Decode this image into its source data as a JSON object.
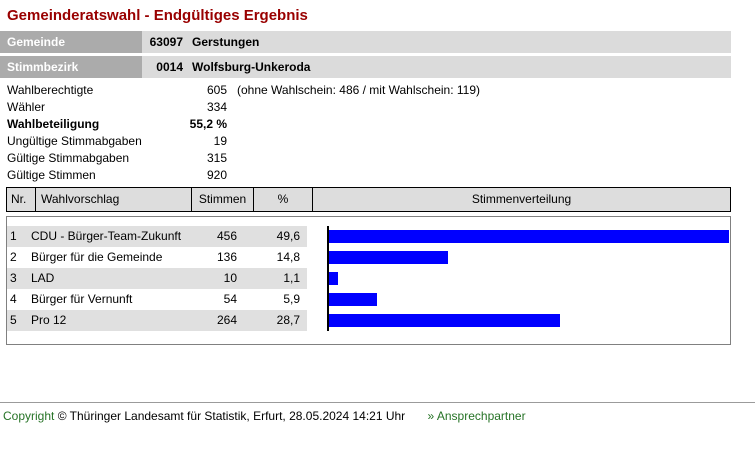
{
  "page": {
    "title": "Gemeinderatswahl - Endgültiges Ergebnis"
  },
  "region": {
    "rows": [
      {
        "label": "Gemeinde",
        "code": "63097",
        "name": "Gerstungen"
      },
      {
        "label": "Stimmbezirk",
        "code": "0014",
        "name": "Wolfsburg-Unkeroda"
      }
    ]
  },
  "summary": {
    "rows": [
      {
        "label": "Wahlberechtigte",
        "value": "605",
        "note": "(ohne Wahlschein: 486 / mit Wahlschein: 119)"
      },
      {
        "label": "Wähler",
        "value": "334"
      },
      {
        "label": "Wahlbeteiligung",
        "value": "55,2 %"
      },
      {
        "label": "Ungültige Stimmabgaben",
        "value": "19"
      },
      {
        "label": "Gültige Stimmabgaben",
        "value": "315"
      },
      {
        "label": "Gültige Stimmen",
        "value": "920"
      }
    ]
  },
  "results_table": {
    "headers": {
      "nr": "Nr.",
      "proposal": "Wahlvorschlag",
      "votes": "Stimmen",
      "percent": "%",
      "distribution": "Stimmenverteilung"
    },
    "rows": [
      {
        "nr": "1",
        "proposal": "CDU - Bürger-Team-Zukunft",
        "votes": "456",
        "percent": "49,6"
      },
      {
        "nr": "2",
        "proposal": "Bürger für die Gemeinde",
        "votes": "136",
        "percent": "14,8"
      },
      {
        "nr": "3",
        "proposal": "LAD",
        "votes": "10",
        "percent": "1,1"
      },
      {
        "nr": "4",
        "proposal": "Bürger für Vernunft",
        "votes": "54",
        "percent": "5,9"
      },
      {
        "nr": "5",
        "proposal": "Pro 12",
        "votes": "264",
        "percent": "28,7"
      }
    ]
  },
  "chart_data": {
    "type": "bar",
    "orientation": "horizontal",
    "title": "Stimmenverteilung",
    "categories": [
      "CDU - Bürger-Team-Zukunft",
      "Bürger für die Gemeinde",
      "LAD",
      "Bürger für Vernunft",
      "Pro 12"
    ],
    "values": [
      49.6,
      14.8,
      1.1,
      5.9,
      28.7
    ],
    "unit": "%",
    "xlim": [
      0,
      50
    ],
    "bar_color": "#0000FF"
  },
  "footer": {
    "copyright_link": "Copyright",
    "copyright_text": "© Thüringer Landesamt für Statistik, Erfurt, 28.05.2024 14:21 Uhr",
    "contact_link": "» Ansprechpartner"
  },
  "colors": {
    "title": "#990000",
    "bar": "#0000FF",
    "link_green": "#267326",
    "table_header_bg": "#DDDDDD",
    "row_stripe": "#E0E0E0",
    "region_label_bg": "#ABABAB",
    "region_value_bg": "#DBDBDB"
  }
}
